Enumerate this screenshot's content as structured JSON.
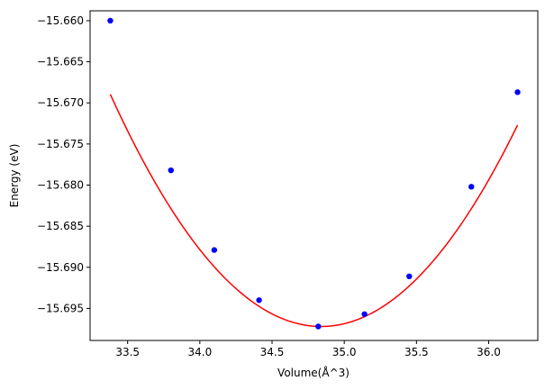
{
  "chart_data": {
    "type": "scatter",
    "title": "",
    "xlabel": "Volume(Å^3)",
    "ylabel": "Energy (eV)",
    "xlim": [
      33.24,
      36.34
    ],
    "ylim": [
      -15.6989,
      -15.6588
    ],
    "grid": false,
    "x_ticks": [
      "33.5",
      "34.0",
      "34.5",
      "35.0",
      "35.5",
      "36.0"
    ],
    "y_ticks": [
      "−15.660",
      "−15.665",
      "−15.670",
      "−15.675",
      "−15.680",
      "−15.685",
      "−15.690",
      "−15.695"
    ],
    "points": {
      "color": "#0000ff",
      "x": [
        33.38,
        33.8,
        34.1,
        34.41,
        34.82,
        35.14,
        35.45,
        35.88,
        36.2
      ],
      "y": [
        -15.66,
        -15.6782,
        -15.6879,
        -15.694,
        -15.6972,
        -15.6957,
        -15.6911,
        -15.6802,
        -15.6687
      ]
    },
    "fit_curve": {
      "color": "#ff0000",
      "type": "quadratic",
      "x_min": 33.38,
      "x_max": 36.2,
      "vertex_x": 34.84,
      "vertex_y": -15.6972,
      "curvature": 0.01325
    }
  }
}
